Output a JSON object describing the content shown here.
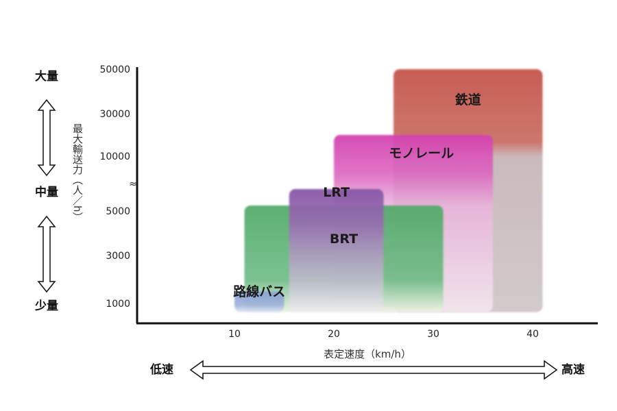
{
  "chart_data": {
    "type": "area",
    "xlabel": "表定速度（km/h）",
    "ylabel": "最大輸送力（人／h）",
    "x_ticks": [
      10,
      20,
      30,
      40
    ],
    "y_ticks": [
      1000,
      3000,
      5000,
      10000,
      30000,
      50000
    ],
    "y_scale": "broken",
    "y_break_mark": "≈",
    "xlim": [
      1,
      47
    ],
    "ylim": [
      0,
      50000
    ],
    "y_side_labels": {
      "top": "大量",
      "middle": "中量",
      "bottom": "少量"
    },
    "x_side_labels": {
      "left": "低速",
      "right": "高速"
    },
    "series": [
      {
        "name": "路線バス",
        "x_range": [
          10,
          15
        ],
        "y_range": [
          700,
          1500
        ],
        "color": "#7f97c8"
      },
      {
        "name": "BRT",
        "x_range": [
          11,
          31
        ],
        "y_range": [
          700,
          5500
        ],
        "color": "#58ad70"
      },
      {
        "name": "LRT",
        "x_range": [
          15.5,
          25
        ],
        "y_range": [
          700,
          7000
        ],
        "color": "#8a5aa8"
      },
      {
        "name": "モノレール",
        "x_range": [
          20,
          36
        ],
        "y_range": [
          700,
          20000
        ],
        "color": "#d545b2"
      },
      {
        "name": "鉄道",
        "x_range": [
          26,
          41
        ],
        "y_range": [
          700,
          50000
        ],
        "color": "#c65a50"
      }
    ]
  }
}
